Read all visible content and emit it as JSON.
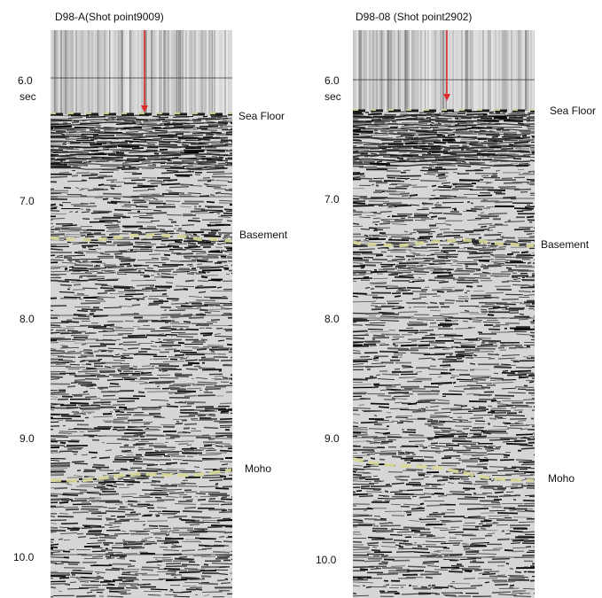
{
  "panels": [
    {
      "title": "D98-A(Shot point9009)",
      "time_unit": "sec",
      "ticks": [
        "6.0",
        "7.0",
        "8.0",
        "9.0",
        "10.0"
      ],
      "horizons": [
        "Sea Floor",
        "Basement",
        "Moho"
      ]
    },
    {
      "title": "D98-08 (Shot point2902)",
      "time_unit": "sec",
      "ticks": [
        "6.0",
        "7.0",
        "8.0",
        "9.0",
        "10.0"
      ],
      "horizons": [
        "Sea Floor",
        "Basement",
        "Moho"
      ]
    }
  ],
  "colors": {
    "arrow": "#e0292b",
    "horizon_pick": "#d8d89a",
    "seafloor_dash": "#1a1a1a"
  }
}
